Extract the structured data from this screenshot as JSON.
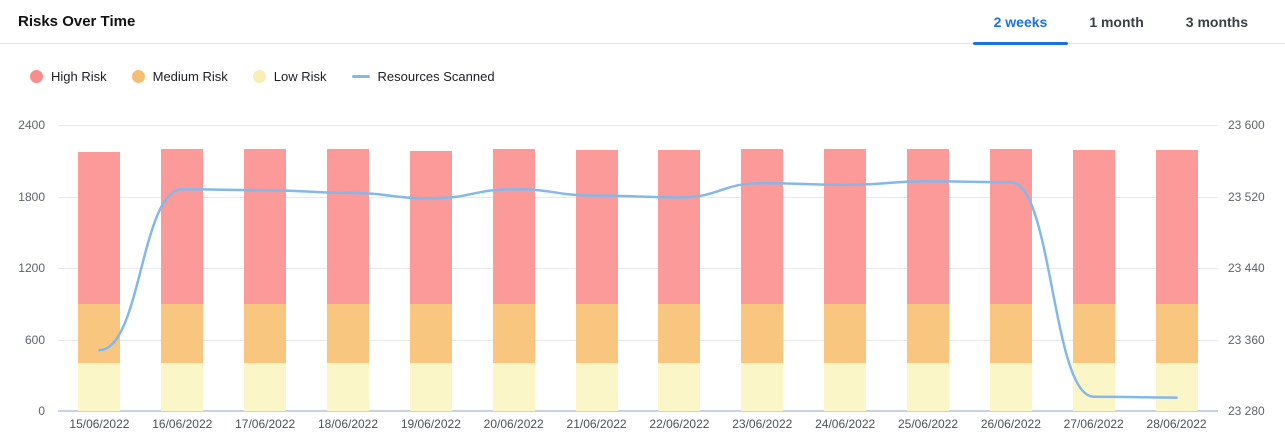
{
  "header": {
    "title": "Risks Over Time",
    "tabs": [
      {
        "label": "2 weeks",
        "active": true
      },
      {
        "label": "1 month",
        "active": false
      },
      {
        "label": "3 months",
        "active": false
      }
    ]
  },
  "legend": {
    "items": [
      {
        "label": "High Risk",
        "marker": "dot",
        "color": "#F98C8C"
      },
      {
        "label": "Medium Risk",
        "marker": "dot",
        "color": "#F5BE76"
      },
      {
        "label": "Low Risk",
        "marker": "dot",
        "color": "#F9EFB4"
      },
      {
        "label": "Resources Scanned",
        "marker": "line",
        "color": "#85B8EA"
      }
    ]
  },
  "chart_data": {
    "type": "bar",
    "stacked": true,
    "title": "Risks Over Time",
    "grid": true,
    "legend_position": "top-left",
    "categories": [
      "15/06/2022",
      "16/06/2022",
      "17/06/2022",
      "18/06/2022",
      "19/06/2022",
      "20/06/2022",
      "21/06/2022",
      "22/06/2022",
      "23/06/2022",
      "24/06/2022",
      "25/06/2022",
      "26/06/2022",
      "27/06/2022",
      "28/06/2022"
    ],
    "series": [
      {
        "name": "Low Risk",
        "color": "#FBF6C7",
        "values": [
          400,
          400,
          400,
          400,
          400,
          400,
          400,
          400,
          400,
          400,
          400,
          400,
          400,
          400
        ]
      },
      {
        "name": "Medium Risk",
        "color": "#F8C67E",
        "values": [
          500,
          500,
          500,
          500,
          500,
          500,
          500,
          500,
          500,
          500,
          500,
          500,
          500,
          500
        ]
      },
      {
        "name": "High Risk",
        "color": "#FC9999",
        "values": [
          1270,
          1300,
          1295,
          1295,
          1285,
          1300,
          1290,
          1290,
          1300,
          1300,
          1300,
          1295,
          1290,
          1290
        ]
      }
    ],
    "line_series": {
      "name": "Resources Scanned",
      "color": "#85B8EA",
      "axis": "right",
      "values": [
        23348,
        23528,
        23527,
        23524,
        23518,
        23528,
        23521,
        23519,
        23535,
        23533,
        23537,
        23536,
        23296,
        23295
      ]
    },
    "left_axis": {
      "min": 0,
      "max": 2400,
      "ticks": [
        2400,
        1800,
        1200,
        600,
        0
      ],
      "tick_labels": [
        "2400",
        "1800",
        "1200",
        "600",
        "0"
      ]
    },
    "right_axis": {
      "min": 23280,
      "max": 23600,
      "ticks": [
        23600,
        23520,
        23440,
        23360,
        23280
      ],
      "tick_labels": [
        "23 600",
        "23 520",
        "23 440",
        "23 360",
        "23 280"
      ]
    }
  },
  "colors": {
    "accent_blue": "#1A73E0",
    "gridline": "#E9E9E9",
    "baseline": "#C6D3E6"
  }
}
